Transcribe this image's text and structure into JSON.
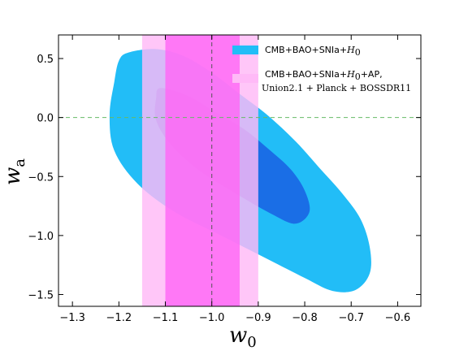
{
  "chart_data": {
    "type": "contour",
    "xlabel": "w",
    "xlabel_sub": "0",
    "ylabel": "w",
    "ylabel_sub": "a",
    "xlim": [
      -1.33,
      -0.55
    ],
    "ylim": [
      -1.6,
      0.7
    ],
    "xticks": [
      -1.3,
      -1.2,
      -1.1,
      -1.0,
      -0.9,
      -0.8,
      -0.7,
      -0.6
    ],
    "xtick_labels": [
      "−1.3",
      "−1.2",
      "−1.1",
      "−1.0",
      "−0.9",
      "−0.8",
      "−0.7",
      "−0.6"
    ],
    "yticks": [
      0.5,
      0.0,
      -0.5,
      -1.0,
      -1.5
    ],
    "ytick_labels": [
      "0.5",
      "0.0",
      "−0.5",
      "−1.0",
      "−1.5"
    ],
    "reference_lines": {
      "x": -1.0,
      "y": 0.0
    },
    "colors": {
      "cyan_outer": "#22bdf7",
      "cyan_inner": "#1a6ee6",
      "pink_outer": "#ffbaf7",
      "pink_inner": "#ff66f5",
      "hline": "#66bb66",
      "vline": "#555555"
    },
    "legend": {
      "placement": "top-right",
      "entries": [
        {
          "label": "CMB+BAO+SNIa+",
          "label_math": "H",
          "label_sub": "0",
          "color": "#22bdf7"
        },
        {
          "label": "CMB+BAO+SNIa+",
          "label_math": "H",
          "label_sub": "0",
          "label_suffix": "+AP,",
          "label_line2": "Union2.1 + Planck + BOSSDR11",
          "color": "#ffbaf7"
        }
      ]
    },
    "bands": [
      {
        "name": "pink-outer",
        "x_range": [
          -1.15,
          -0.9
        ],
        "color": "#ffbaf7",
        "opacity": 0.82
      },
      {
        "name": "pink-inner",
        "x_range": [
          -1.1,
          -0.94
        ],
        "color": "#ff66f5",
        "opacity": 0.82
      }
    ],
    "contours": [
      {
        "name": "cyan-outer",
        "color": "#22bdf7",
        "points": [
          [
            -1.18,
            0.55
          ],
          [
            -1.12,
            0.58
          ],
          [
            -1.06,
            0.52
          ],
          [
            -1.0,
            0.38
          ],
          [
            -0.94,
            0.2
          ],
          [
            -0.88,
            0.02
          ],
          [
            -0.82,
            -0.2
          ],
          [
            -0.77,
            -0.42
          ],
          [
            -0.72,
            -0.64
          ],
          [
            -0.68,
            -0.86
          ],
          [
            -0.66,
            -1.1
          ],
          [
            -0.66,
            -1.32
          ],
          [
            -0.69,
            -1.46
          ],
          [
            -0.74,
            -1.47
          ],
          [
            -0.8,
            -1.36
          ],
          [
            -0.88,
            -1.2
          ],
          [
            -0.98,
            -1.0
          ],
          [
            -1.08,
            -0.8
          ],
          [
            -1.16,
            -0.56
          ],
          [
            -1.21,
            -0.28
          ],
          [
            -1.22,
            0.02
          ],
          [
            -1.21,
            0.3
          ],
          [
            -1.2,
            0.48
          ]
        ]
      },
      {
        "name": "cyan-inner",
        "color": "#1a6ee6",
        "points": [
          [
            -1.11,
            0.25
          ],
          [
            -1.05,
            0.18
          ],
          [
            -0.99,
            0.04
          ],
          [
            -0.93,
            -0.1
          ],
          [
            -0.88,
            -0.26
          ],
          [
            -0.83,
            -0.44
          ],
          [
            -0.8,
            -0.62
          ],
          [
            -0.79,
            -0.8
          ],
          [
            -0.82,
            -0.9
          ],
          [
            -0.87,
            -0.82
          ],
          [
            -0.95,
            -0.64
          ],
          [
            -1.03,
            -0.44
          ],
          [
            -1.09,
            -0.22
          ],
          [
            -1.12,
            -0.02
          ],
          [
            -1.12,
            0.16
          ]
        ]
      }
    ]
  }
}
